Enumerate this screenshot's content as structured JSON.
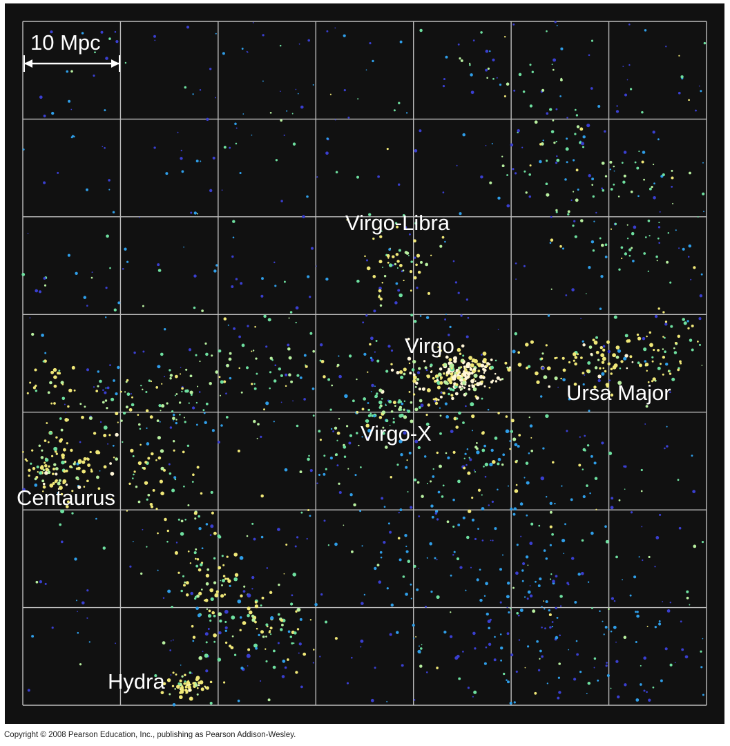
{
  "scale_bar": {
    "label": "10 Mpc"
  },
  "regions": [
    {
      "id": "virgo-libra",
      "label": "Virgo-Libra"
    },
    {
      "id": "virgo",
      "label": "Virgo"
    },
    {
      "id": "ursa-major",
      "label": "Ursa Major"
    },
    {
      "id": "virgo-x",
      "label": "Virgo-X"
    },
    {
      "id": "centaurus",
      "label": "Centaurus"
    },
    {
      "id": "hydra",
      "label": "Hydra"
    }
  ],
  "copyright": "Copyright © 2008 Pearson Education, Inc., publishing as Pearson Addison-Wesley.",
  "colors": {
    "background": "#111111",
    "grid": "#bdbdbd",
    "galaxy_palette": [
      "#3a3fd0",
      "#2f9ee8",
      "#6ee0a0",
      "#b8f0a0",
      "#f0e878",
      "#fff6d8"
    ]
  }
}
